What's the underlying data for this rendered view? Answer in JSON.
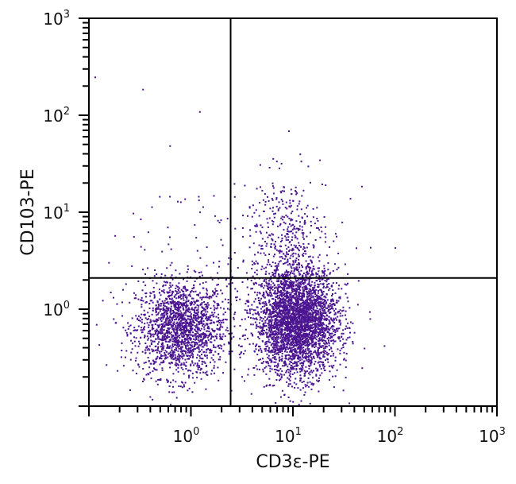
{
  "chart_data": {
    "type": "scatter",
    "xlabel": "CD3ε-PE",
    "ylabel": "CD103-PE",
    "x_scale": "log",
    "y_scale": "log",
    "xlim": [
      0.1,
      1000
    ],
    "ylim": [
      0.1,
      1000
    ],
    "x_ticks": [
      {
        "base": "10",
        "exp": "0",
        "value": 1
      },
      {
        "base": "10",
        "exp": "1",
        "value": 10
      },
      {
        "base": "10",
        "exp": "2",
        "value": 100
      },
      {
        "base": "10",
        "exp": "3",
        "value": 1000
      }
    ],
    "y_ticks": [
      {
        "base": "10",
        "exp": "0",
        "value": 1
      },
      {
        "base": "10",
        "exp": "1",
        "value": 10
      },
      {
        "base": "10",
        "exp": "2",
        "value": 100
      },
      {
        "base": "10",
        "exp": "3",
        "value": 1000
      }
    ],
    "quadrant_gates": {
      "x": 2.45,
      "y": 2.1
    },
    "grid": false,
    "point_color": "#4b1590",
    "populations": [
      {
        "center": [
          0.8,
          0.63
        ],
        "spread_decades": [
          0.22,
          0.25
        ],
        "count": 1800
      },
      {
        "center": [
          11,
          0.75
        ],
        "spread_decades": [
          0.2,
          0.28
        ],
        "count": 3400
      },
      {
        "center": [
          8,
          6
        ],
        "spread_decades": [
          0.2,
          0.3
        ],
        "count": 350
      },
      {
        "center": [
          3,
          3
        ],
        "spread_decades": [
          0.6,
          0.6
        ],
        "count": 120
      }
    ]
  }
}
